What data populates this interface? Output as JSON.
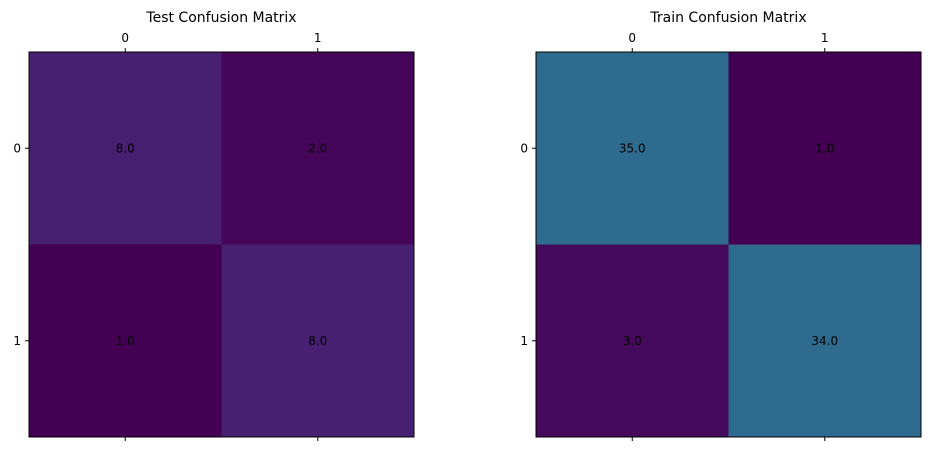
{
  "chart_data": [
    {
      "type": "heatmap",
      "title": "Test Confusion Matrix",
      "x_categories": [
        "0",
        "1"
      ],
      "y_categories": [
        "0",
        "1"
      ],
      "values": [
        [
          8,
          2
        ],
        [
          1,
          8
        ]
      ],
      "cell_labels": [
        [
          "8.0",
          "2.0"
        ],
        [
          "1.0",
          "8.0"
        ]
      ],
      "colormap": "viridis",
      "color_range": [
        1,
        35
      ],
      "colors": [
        [
          "#482071",
          "#450559"
        ],
        [
          "#440154",
          "#482071"
        ]
      ],
      "x_ticks_position": "top",
      "grid": false,
      "legend": "none"
    },
    {
      "type": "heatmap",
      "title": "Train Confusion Matrix",
      "x_categories": [
        "0",
        "1"
      ],
      "y_categories": [
        "0",
        "1"
      ],
      "values": [
        [
          35,
          1
        ],
        [
          3,
          34
        ]
      ],
      "cell_labels": [
        [
          "35.0",
          "1.0"
        ],
        [
          "3.0",
          "34.0"
        ]
      ],
      "colormap": "viridis",
      "color_range": [
        1,
        35
      ],
      "colors": [
        [
          "#2f6b8e",
          "#440154"
        ],
        [
          "#460a5d",
          "#2f6b8e"
        ]
      ],
      "x_ticks_position": "top",
      "grid": false,
      "legend": "none"
    }
  ]
}
